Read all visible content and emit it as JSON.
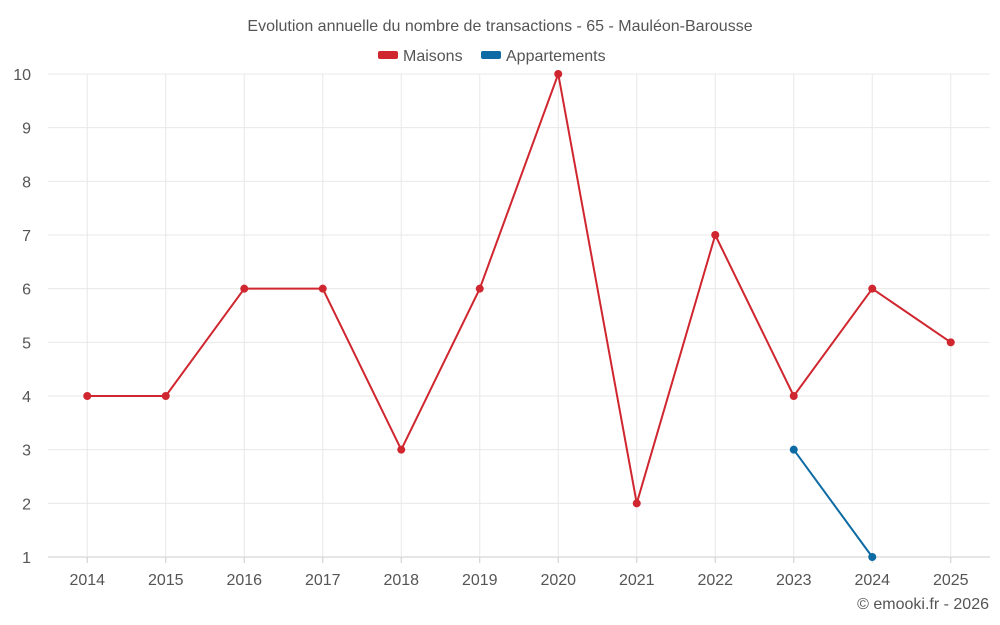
{
  "chart_data": {
    "type": "line",
    "title": "Evolution annuelle du nombre de transactions - 65 - Mauléon-Barousse",
    "categories": [
      "2014",
      "2015",
      "2016",
      "2017",
      "2018",
      "2019",
      "2020",
      "2021",
      "2022",
      "2023",
      "2024",
      "2025"
    ],
    "series": [
      {
        "name": "Maisons",
        "color": "#d0262f",
        "values": [
          4,
          4,
          6,
          6,
          3,
          6,
          10,
          2,
          7,
          4,
          6,
          5
        ]
      },
      {
        "name": "Appartements",
        "color": "#0d6ba3",
        "values": [
          null,
          null,
          null,
          null,
          null,
          null,
          null,
          null,
          null,
          3,
          1,
          null
        ]
      }
    ],
    "ylim": [
      1,
      10
    ],
    "yticks": [
      1,
      2,
      3,
      4,
      5,
      6,
      7,
      8,
      9,
      10
    ],
    "xlabel": "",
    "ylabel": "",
    "grid": true,
    "legend": "top-center"
  },
  "credit": "© emooki.fr - 2026"
}
